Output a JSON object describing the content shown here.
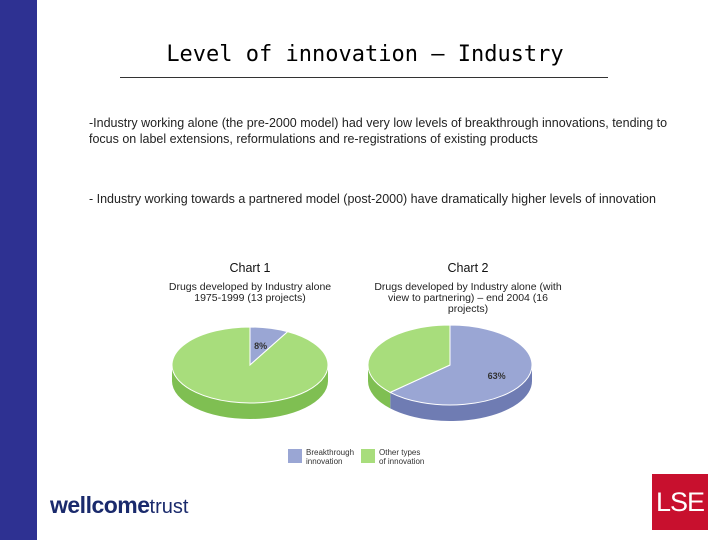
{
  "slide": {
    "title": "Level of innovation – Industry",
    "paragraphs": [
      "-Industry working alone (the pre-2000 model) had very low levels of breakthrough innovations, tending to focus on label extensions, reformulations and re-registrations of existing products",
      "- Industry working towards a partnered model (post-2000) have dramatically higher levels of innovation"
    ]
  },
  "chart_data": [
    {
      "type": "pie",
      "title": "Chart 1",
      "subtitle": "Drugs developed by Industry alone 1975-1999 (13 projects)",
      "categories": [
        "Breakthrough innovation",
        "Other types of innovation"
      ],
      "values": [
        8,
        92
      ],
      "data_labels": [
        "8%"
      ]
    },
    {
      "type": "pie",
      "title": "Chart 2",
      "subtitle": "Drugs developed by Industry alone (with view to partnering) – end 2004 (16 projects)",
      "categories": [
        "Breakthrough innovation",
        "Other types of innovation"
      ],
      "values": [
        63,
        37
      ],
      "data_labels": [
        "63%"
      ]
    }
  ],
  "legend": {
    "items": [
      "Breakthrough innovation",
      "Other types of innovation"
    ],
    "colors": [
      "#9aa6d4",
      "#a8dd7c"
    ]
  },
  "logos": {
    "wellcome": "wellcome",
    "trust": "trust",
    "lse": "LSE"
  }
}
